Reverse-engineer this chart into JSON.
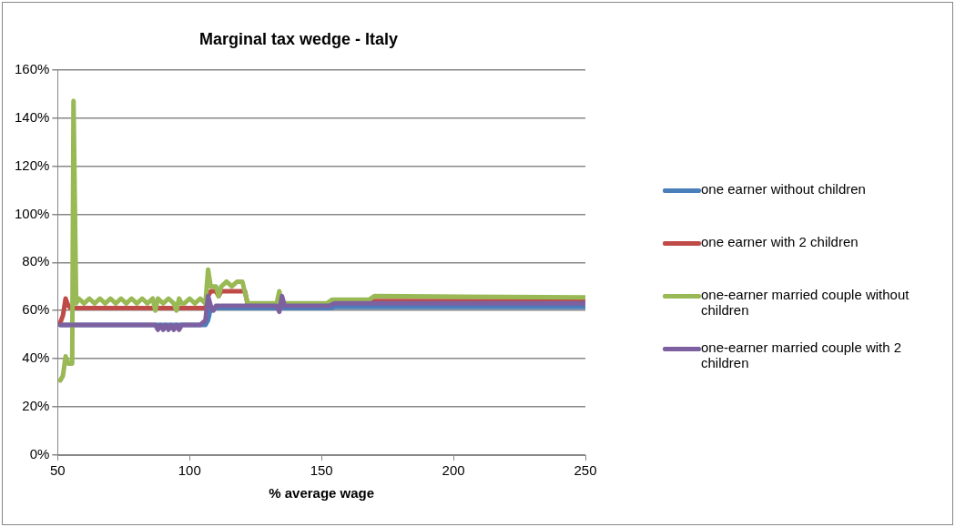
{
  "chart_data": {
    "type": "line",
    "title": "Marginal tax wedge - Italy",
    "xlabel": "% average wage",
    "xlim": [
      50,
      250
    ],
    "xticks": [
      50,
      100,
      150,
      200,
      250
    ],
    "ylim": [
      0,
      160
    ],
    "yticks": [
      {
        "value": 0,
        "label": "0%"
      },
      {
        "value": 20,
        "label": "20%"
      },
      {
        "value": 40,
        "label": "40%"
      },
      {
        "value": 60,
        "label": "60%"
      },
      {
        "value": 80,
        "label": "80%"
      },
      {
        "value": 100,
        "label": "100%"
      },
      {
        "value": 120,
        "label": "120%"
      },
      {
        "value": 140,
        "label": "140%"
      },
      {
        "value": 160,
        "label": "160%"
      }
    ],
    "grid": "y",
    "legend": "right",
    "marker": "none",
    "line_style": "solid",
    "series": [
      {
        "name": "one earner without children",
        "color": "#4a7ebb",
        "x": [
          51,
          106,
          107,
          108,
          153,
          155,
          250
        ],
        "values": [
          54,
          54,
          56,
          61,
          61,
          61.5,
          61.5
        ]
      },
      {
        "name": "one earner with 2 children",
        "color": "#be4b48",
        "x": [
          51,
          52,
          53,
          54,
          55,
          106,
          107,
          108,
          110,
          111,
          112,
          121,
          122,
          152,
          154,
          250
        ],
        "values": [
          55,
          58,
          65,
          62,
          61,
          61,
          66,
          68,
          68,
          66,
          68,
          68,
          62.5,
          62.5,
          64,
          64
        ]
      },
      {
        "name": "one-earner married couple without children",
        "color": "#98b954",
        "x": [
          51,
          52,
          53,
          54,
          55,
          55.5,
          56,
          57,
          58,
          60,
          62,
          64,
          66,
          68,
          70,
          72,
          74,
          76,
          78,
          80,
          82,
          84,
          86,
          87,
          88,
          90,
          92,
          94,
          95,
          96,
          97,
          98,
          100,
          102,
          104,
          106,
          107,
          108,
          109,
          110,
          111,
          112,
          114,
          116,
          118,
          120,
          122,
          133,
          134,
          135,
          152,
          154,
          168,
          170,
          250
        ],
        "values": [
          31,
          33,
          41,
          38,
          38,
          38,
          147,
          63,
          65,
          63,
          65,
          63,
          65,
          63,
          65,
          63,
          65,
          63,
          65,
          63,
          65,
          63,
          65,
          60,
          65,
          63,
          65,
          63,
          60,
          65,
          63,
          63,
          65,
          63,
          65,
          63,
          77,
          70,
          70,
          70,
          66,
          70,
          72,
          70,
          72,
          72,
          63,
          63,
          68,
          63,
          63,
          64.5,
          64.5,
          66,
          65.5
        ]
      },
      {
        "name": "one-earner married couple with 2 children",
        "color": "#7d60a0",
        "x": [
          51,
          87,
          88,
          89,
          90,
          91,
          92,
          93,
          94,
          95,
          96,
          97,
          98,
          104,
          106,
          107,
          108,
          109,
          110,
          133,
          134,
          135,
          136,
          153,
          155,
          250
        ],
        "values": [
          54,
          54,
          52,
          54,
          52,
          54,
          52,
          54,
          52,
          54,
          52,
          54,
          54,
          54,
          56,
          66,
          62,
          60,
          62,
          62,
          59.5,
          66,
          62,
          62,
          63,
          63
        ]
      }
    ]
  }
}
